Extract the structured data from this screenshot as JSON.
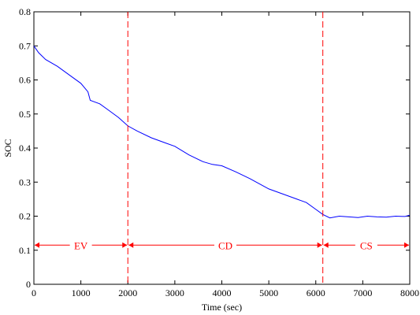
{
  "chart_data": {
    "type": "line",
    "title": "",
    "xlabel": "Time (sec)",
    "ylabel": "SOC",
    "xlim": [
      0,
      8000
    ],
    "ylim": [
      0,
      0.8
    ],
    "grid": false,
    "x_ticks": [
      0,
      1000,
      2000,
      3000,
      4000,
      5000,
      6000,
      7000,
      8000
    ],
    "y_ticks": [
      0,
      0.1,
      0.2,
      0.3,
      0.4,
      0.5,
      0.6,
      0.7,
      0.8
    ],
    "x_tick_labels": [
      "0",
      "1000",
      "2000",
      "3000",
      "4000",
      "5000",
      "6000",
      "7000",
      "8000"
    ],
    "y_tick_labels": [
      "0",
      "0.1",
      "0.2",
      "0.3",
      "0.4",
      "0.5",
      "0.6",
      "0.7",
      "0.8"
    ],
    "series": [
      {
        "color": "#0000ff",
        "x": [
          0,
          100,
          250,
          500,
          800,
          1000,
          1150,
          1200,
          1400,
          1600,
          1800,
          2000,
          2200,
          2500,
          2800,
          3000,
          3300,
          3600,
          3800,
          4000,
          4300,
          4600,
          4800,
          5000,
          5300,
          5600,
          5800,
          6000,
          6150,
          6300,
          6500,
          6700,
          6900,
          7100,
          7300,
          7500,
          7700,
          7900,
          8000
        ],
        "y": [
          0.7,
          0.68,
          0.66,
          0.64,
          0.61,
          0.59,
          0.565,
          0.54,
          0.53,
          0.51,
          0.49,
          0.465,
          0.45,
          0.43,
          0.415,
          0.405,
          0.38,
          0.36,
          0.352,
          0.348,
          0.33,
          0.31,
          0.295,
          0.28,
          0.265,
          0.25,
          0.24,
          0.22,
          0.205,
          0.195,
          0.2,
          0.198,
          0.196,
          0.2,
          0.198,
          0.197,
          0.2,
          0.199,
          0.203
        ]
      }
    ],
    "vertical_lines": [
      {
        "x": 2000,
        "color": "#ff0000",
        "style": "dashed"
      },
      {
        "x": 6150,
        "color": "#ff0000",
        "style": "dashed"
      }
    ],
    "regions": [
      {
        "label": "EV",
        "x_start": 0,
        "x_end": 2000,
        "y": 0.115,
        "color": "#ff0000"
      },
      {
        "label": "CD",
        "x_start": 2000,
        "x_end": 6150,
        "y": 0.115,
        "color": "#ff0000"
      },
      {
        "label": "CS",
        "x_start": 6150,
        "x_end": 8000,
        "y": 0.115,
        "color": "#ff0000"
      }
    ]
  }
}
